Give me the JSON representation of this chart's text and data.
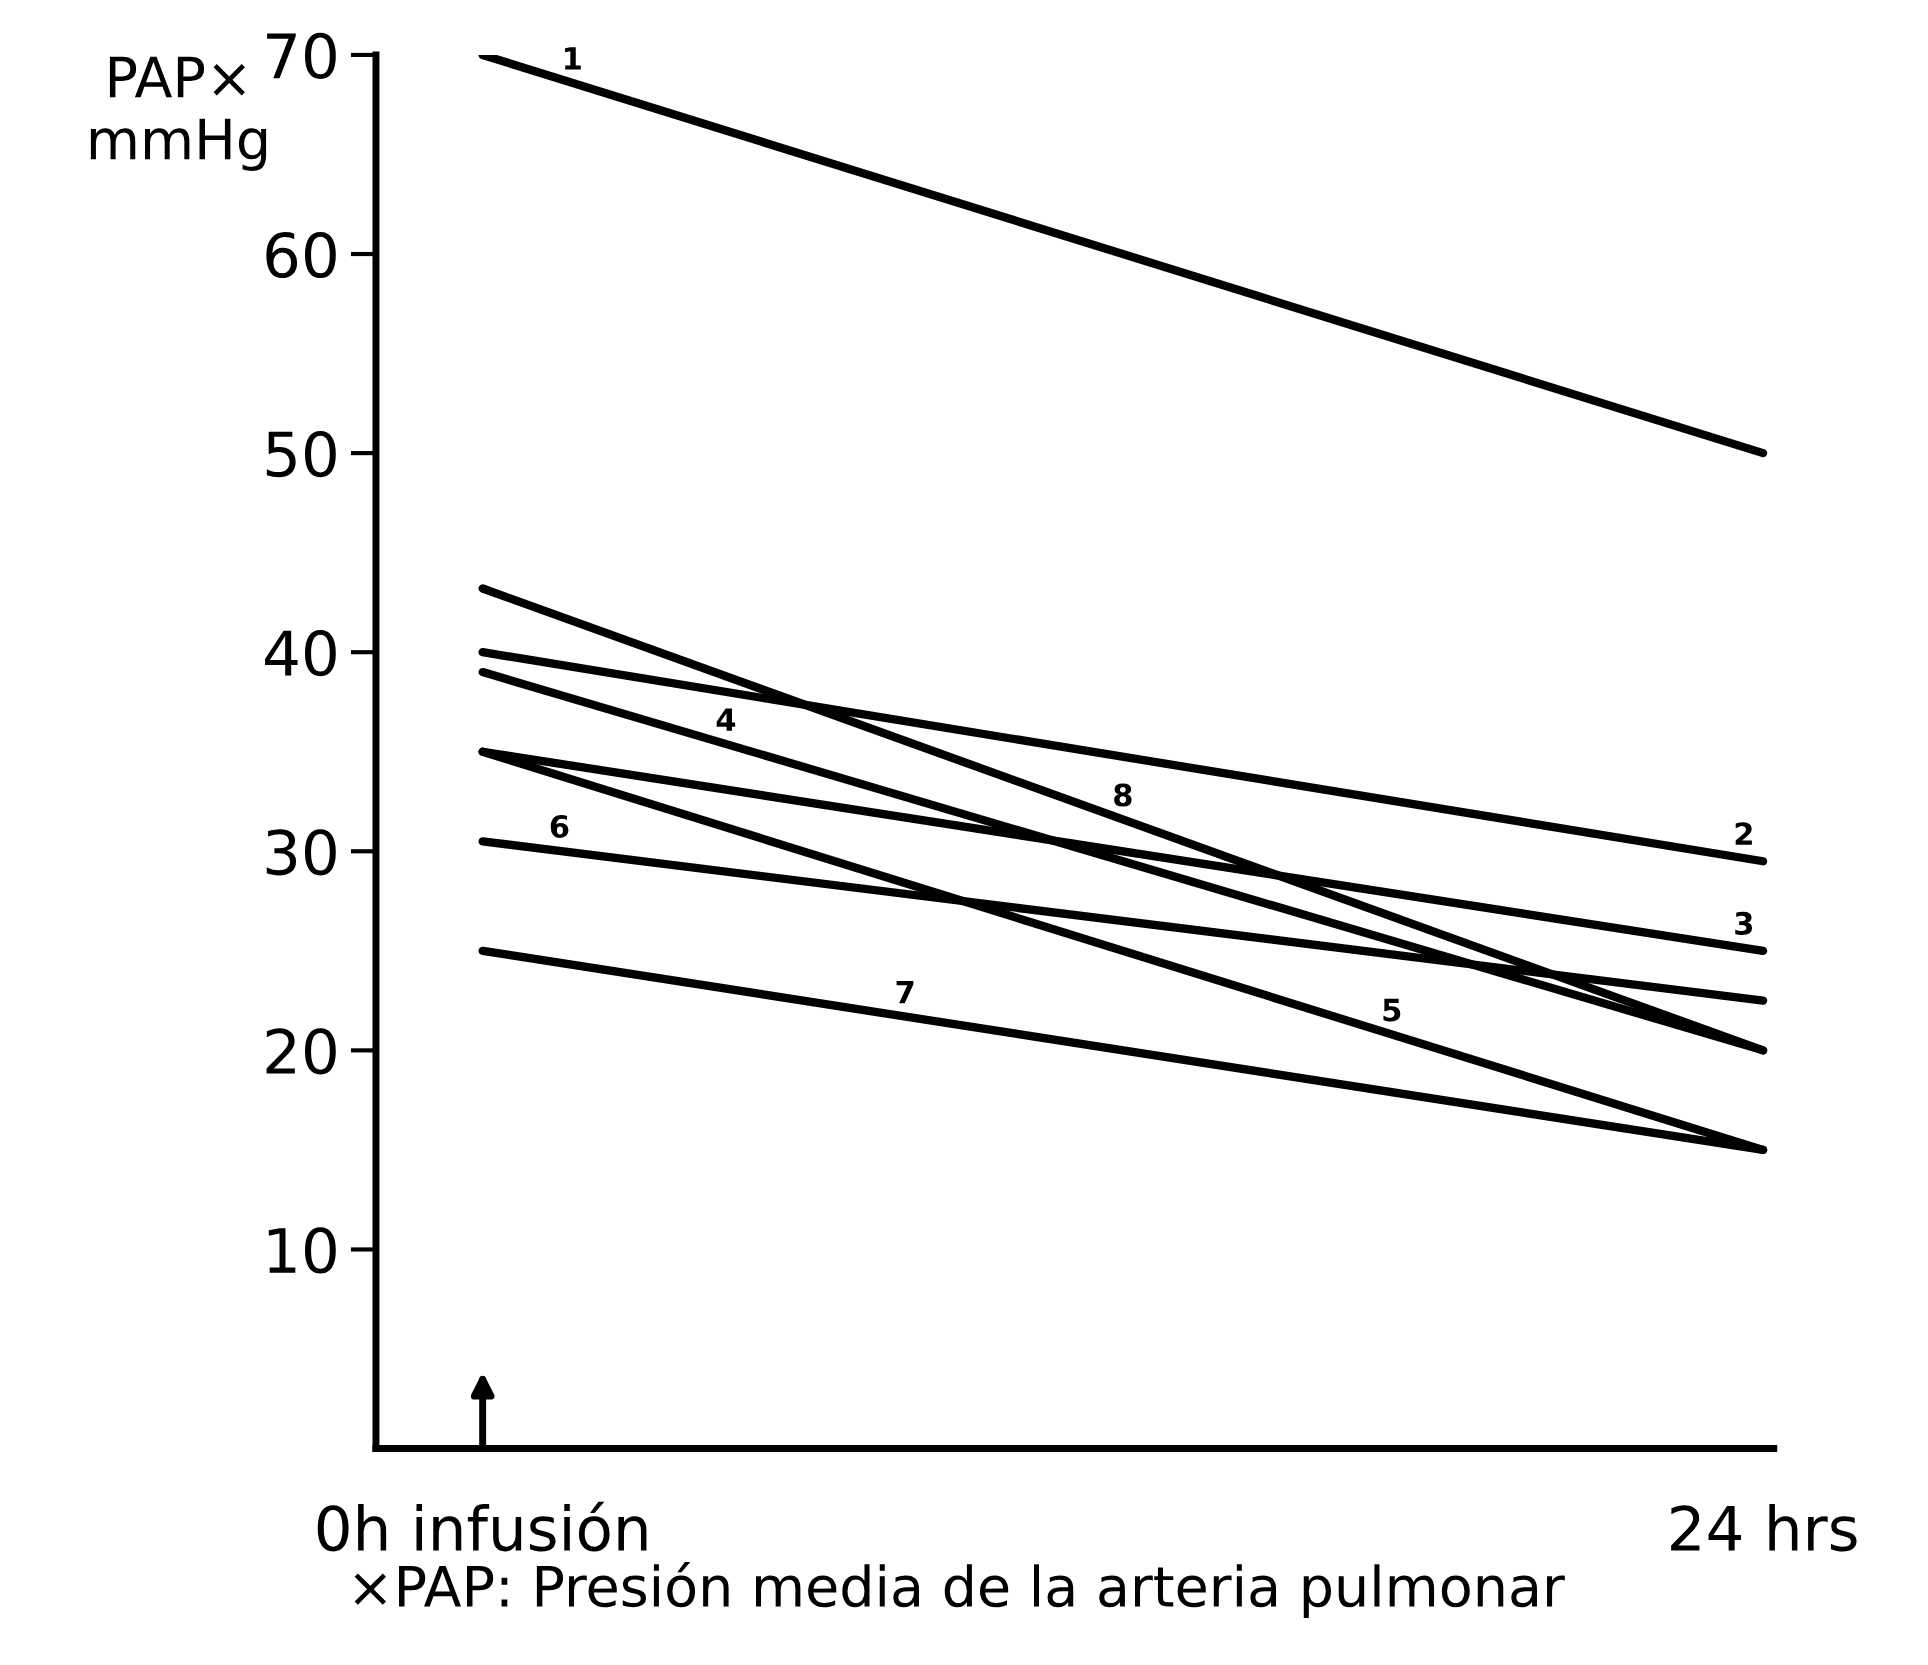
{
  "chart_data": {
    "type": "line",
    "ylabel": "PAP×\nmmHg",
    "x": [
      0,
      24
    ],
    "xlim": [
      -2,
      24.2
    ],
    "xticks": [
      {
        "value": 0,
        "label": "0h infusión"
      },
      {
        "value": 24,
        "label": "24 hrs"
      }
    ],
    "ylim": [
      0,
      70
    ],
    "yticks": [
      10,
      20,
      30,
      40,
      50,
      60,
      70
    ],
    "series": [
      {
        "name": "1",
        "color": "#000000",
        "values": [
          70,
          50
        ]
      },
      {
        "name": "2",
        "color": "#000000",
        "values": [
          40,
          29.5
        ]
      },
      {
        "name": "3",
        "color": "#000000",
        "values": [
          35,
          25
        ]
      },
      {
        "name": "4",
        "color": "#000000",
        "values": [
          39,
          20
        ]
      },
      {
        "name": "5",
        "color": "#000000",
        "values": [
          35,
          15
        ]
      },
      {
        "name": "6",
        "color": "#000000",
        "values": [
          30.5,
          22.5
        ]
      },
      {
        "name": "7",
        "color": "#000000",
        "values": [
          25,
          15
        ]
      },
      {
        "name": "8",
        "color": "#000000",
        "values": [
          43.2,
          20
        ]
      }
    ],
    "annotations": [
      "×PAP: Presión media de la arteria pulmonar"
    ],
    "grid": false,
    "legend": false,
    "marker": "none",
    "line_style": "solid"
  }
}
